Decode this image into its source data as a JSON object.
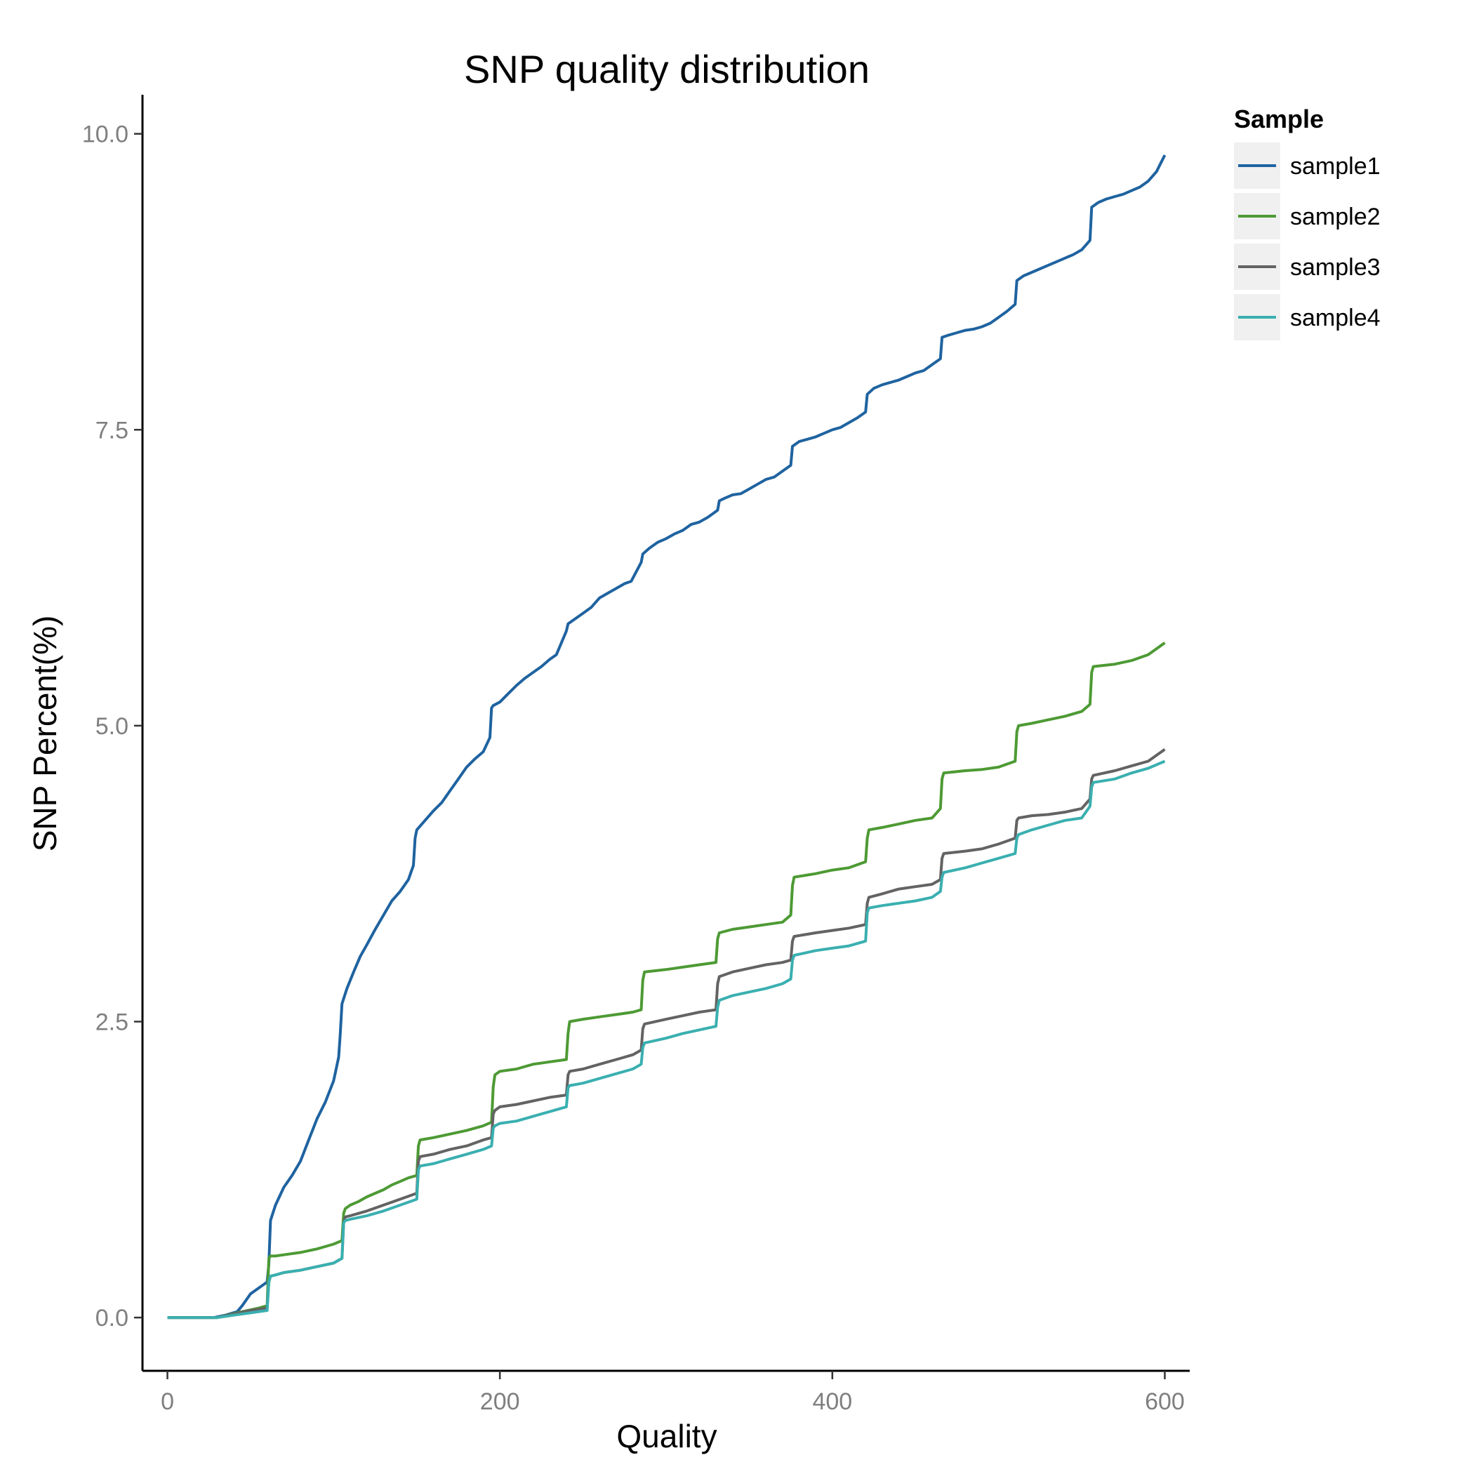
{
  "chart_data": {
    "type": "line",
    "title": "SNP quality distribution",
    "xlabel": "Quality",
    "ylabel": "SNP Percent(%)",
    "xlim": [
      -15,
      615
    ],
    "ylim": [
      -0.45,
      10.33
    ],
    "xticks": [
      0,
      200,
      400,
      600
    ],
    "xtick_labels": [
      "0",
      "200",
      "400",
      "600"
    ],
    "yticks": [
      0,
      2.5,
      5,
      7.5,
      10
    ],
    "ytick_labels": [
      "0.0",
      "2.5",
      "5.0",
      "7.5",
      "10.0"
    ],
    "grid": false,
    "legend": {
      "title": "Sample",
      "position": "right"
    },
    "series": [
      {
        "name": "sample1",
        "color": "#1f63a0",
        "x": [
          0,
          28,
          35,
          42,
          45,
          50,
          55,
          60,
          61,
          62,
          65,
          70,
          75,
          80,
          85,
          90,
          95,
          100,
          103,
          104,
          105,
          108,
          112,
          116,
          120,
          125,
          130,
          135,
          140,
          145,
          148,
          149,
          150,
          155,
          160,
          165,
          170,
          175,
          180,
          185,
          190,
          194,
          195,
          196,
          200,
          205,
          210,
          215,
          220,
          225,
          230,
          234,
          240,
          241,
          245,
          250,
          255,
          260,
          265,
          270,
          275,
          279,
          285,
          286,
          290,
          295,
          300,
          305,
          310,
          315,
          320,
          325,
          331,
          332,
          335,
          340,
          345,
          350,
          355,
          360,
          365,
          370,
          375,
          376,
          380,
          385,
          390,
          395,
          400,
          405,
          410,
          415,
          420,
          421,
          425,
          430,
          435,
          440,
          445,
          450,
          455,
          465,
          466,
          470,
          475,
          480,
          485,
          490,
          495,
          500,
          505,
          510,
          511,
          515,
          520,
          525,
          530,
          535,
          540,
          545,
          550,
          555,
          556,
          560,
          565,
          570,
          575,
          580,
          585,
          590,
          595,
          600
        ],
        "y": [
          0,
          0,
          0.02,
          0.05,
          0.1,
          0.2,
          0.25,
          0.3,
          0.45,
          0.82,
          0.95,
          1.1,
          1.2,
          1.32,
          1.5,
          1.68,
          1.82,
          2.0,
          2.2,
          2.4,
          2.65,
          2.78,
          2.92,
          3.05,
          3.15,
          3.28,
          3.4,
          3.52,
          3.6,
          3.7,
          3.82,
          4.05,
          4.12,
          4.2,
          4.28,
          4.35,
          4.45,
          4.55,
          4.65,
          4.72,
          4.78,
          4.9,
          5.15,
          5.17,
          5.2,
          5.27,
          5.34,
          5.4,
          5.45,
          5.5,
          5.56,
          5.6,
          5.8,
          5.86,
          5.9,
          5.95,
          6.0,
          6.08,
          6.12,
          6.16,
          6.2,
          6.22,
          6.38,
          6.45,
          6.5,
          6.55,
          6.58,
          6.62,
          6.65,
          6.7,
          6.72,
          6.76,
          6.82,
          6.9,
          6.92,
          6.95,
          6.96,
          7.0,
          7.04,
          7.08,
          7.1,
          7.15,
          7.2,
          7.36,
          7.4,
          7.42,
          7.44,
          7.47,
          7.5,
          7.52,
          7.56,
          7.6,
          7.65,
          7.8,
          7.85,
          7.88,
          7.9,
          7.92,
          7.95,
          7.98,
          8.0,
          8.1,
          8.28,
          8.3,
          8.32,
          8.34,
          8.35,
          8.37,
          8.4,
          8.45,
          8.5,
          8.56,
          8.76,
          8.8,
          8.83,
          8.86,
          8.89,
          8.92,
          8.95,
          8.98,
          9.02,
          9.1,
          9.38,
          9.42,
          9.45,
          9.47,
          9.49,
          9.52,
          9.55,
          9.6,
          9.68,
          9.82
        ]
      },
      {
        "name": "sample2",
        "color": "#4d9a34",
        "x": [
          0,
          30,
          45,
          55,
          60,
          61,
          62,
          65,
          70,
          80,
          90,
          100,
          105,
          106,
          107,
          110,
          115,
          120,
          125,
          130,
          135,
          140,
          145,
          150,
          151,
          152,
          160,
          170,
          180,
          190,
          195,
          196,
          197,
          200,
          210,
          220,
          230,
          240,
          241,
          242,
          250,
          260,
          270,
          280,
          285,
          286,
          287,
          300,
          310,
          320,
          330,
          331,
          332,
          340,
          350,
          360,
          370,
          375,
          376,
          377,
          390,
          400,
          410,
          420,
          421,
          422,
          430,
          440,
          450,
          460,
          465,
          466,
          467,
          480,
          490,
          500,
          510,
          511,
          512,
          520,
          530,
          540,
          550,
          555,
          556,
          557,
          570,
          580,
          590,
          600
        ],
        "y": [
          0,
          0,
          0.05,
          0.08,
          0.1,
          0.5,
          0.52,
          0.52,
          0.53,
          0.55,
          0.58,
          0.62,
          0.65,
          0.88,
          0.92,
          0.95,
          0.98,
          1.02,
          1.05,
          1.08,
          1.12,
          1.15,
          1.18,
          1.2,
          1.45,
          1.5,
          1.52,
          1.55,
          1.58,
          1.62,
          1.65,
          1.95,
          2.05,
          2.08,
          2.1,
          2.14,
          2.16,
          2.18,
          2.4,
          2.5,
          2.52,
          2.54,
          2.56,
          2.58,
          2.6,
          2.85,
          2.92,
          2.94,
          2.96,
          2.98,
          3.0,
          3.2,
          3.25,
          3.28,
          3.3,
          3.32,
          3.34,
          3.4,
          3.65,
          3.72,
          3.75,
          3.78,
          3.8,
          3.85,
          4.05,
          4.12,
          4.14,
          4.17,
          4.2,
          4.22,
          4.3,
          4.55,
          4.6,
          4.62,
          4.63,
          4.65,
          4.7,
          4.95,
          5.0,
          5.02,
          5.05,
          5.08,
          5.12,
          5.18,
          5.45,
          5.5,
          5.52,
          5.55,
          5.6,
          5.7
        ]
      },
      {
        "name": "sample3",
        "color": "#636363",
        "x": [
          0,
          30,
          40,
          50,
          60,
          61,
          62,
          65,
          70,
          80,
          90,
          100,
          105,
          106,
          107,
          110,
          120,
          130,
          140,
          150,
          151,
          152,
          160,
          170,
          180,
          190,
          195,
          196,
          197,
          200,
          210,
          220,
          230,
          240,
          241,
          242,
          250,
          260,
          270,
          280,
          285,
          286,
          287,
          300,
          310,
          320,
          330,
          331,
          332,
          340,
          350,
          360,
          370,
          375,
          376,
          377,
          390,
          400,
          410,
          420,
          421,
          422,
          430,
          440,
          450,
          460,
          465,
          466,
          467,
          480,
          490,
          500,
          510,
          511,
          512,
          520,
          530,
          540,
          550,
          555,
          556,
          557,
          570,
          580,
          590,
          600
        ],
        "y": [
          0,
          0,
          0.03,
          0.06,
          0.08,
          0.3,
          0.35,
          0.36,
          0.38,
          0.4,
          0.43,
          0.46,
          0.5,
          0.8,
          0.85,
          0.86,
          0.9,
          0.95,
          1.0,
          1.05,
          1.32,
          1.36,
          1.38,
          1.42,
          1.45,
          1.5,
          1.52,
          1.72,
          1.75,
          1.78,
          1.8,
          1.83,
          1.86,
          1.88,
          2.05,
          2.08,
          2.1,
          2.14,
          2.18,
          2.22,
          2.26,
          2.44,
          2.48,
          2.52,
          2.55,
          2.58,
          2.6,
          2.82,
          2.88,
          2.92,
          2.95,
          2.98,
          3.0,
          3.02,
          3.18,
          3.22,
          3.25,
          3.27,
          3.29,
          3.32,
          3.5,
          3.55,
          3.58,
          3.62,
          3.64,
          3.66,
          3.7,
          3.88,
          3.92,
          3.94,
          3.96,
          4.0,
          4.05,
          4.2,
          4.22,
          4.24,
          4.25,
          4.27,
          4.3,
          4.38,
          4.55,
          4.58,
          4.62,
          4.66,
          4.7,
          4.8
        ]
      },
      {
        "name": "sample4",
        "color": "#3aafb0",
        "x": [
          0,
          30,
          40,
          50,
          60,
          61,
          62,
          65,
          70,
          80,
          90,
          100,
          105,
          106,
          107,
          110,
          120,
          130,
          140,
          150,
          151,
          152,
          160,
          170,
          180,
          190,
          195,
          196,
          197,
          200,
          210,
          220,
          230,
          240,
          241,
          242,
          250,
          260,
          270,
          280,
          285,
          286,
          287,
          300,
          310,
          320,
          330,
          331,
          332,
          340,
          350,
          360,
          370,
          375,
          376,
          377,
          390,
          400,
          410,
          420,
          421,
          422,
          430,
          440,
          450,
          460,
          465,
          466,
          467,
          480,
          490,
          500,
          510,
          511,
          512,
          520,
          530,
          540,
          550,
          555,
          556,
          557,
          570,
          580,
          590,
          600
        ],
        "y": [
          0,
          0,
          0.02,
          0.04,
          0.06,
          0.3,
          0.35,
          0.36,
          0.38,
          0.4,
          0.43,
          0.46,
          0.5,
          0.8,
          0.82,
          0.83,
          0.86,
          0.9,
          0.95,
          1.0,
          1.25,
          1.28,
          1.3,
          1.34,
          1.38,
          1.42,
          1.45,
          1.6,
          1.62,
          1.64,
          1.66,
          1.7,
          1.74,
          1.78,
          1.94,
          1.96,
          1.98,
          2.02,
          2.06,
          2.1,
          2.14,
          2.28,
          2.32,
          2.36,
          2.4,
          2.43,
          2.46,
          2.62,
          2.68,
          2.72,
          2.75,
          2.78,
          2.82,
          2.86,
          3.02,
          3.06,
          3.1,
          3.12,
          3.14,
          3.18,
          3.42,
          3.46,
          3.48,
          3.5,
          3.52,
          3.55,
          3.6,
          3.72,
          3.76,
          3.8,
          3.84,
          3.88,
          3.92,
          4.05,
          4.08,
          4.12,
          4.16,
          4.2,
          4.22,
          4.32,
          4.48,
          4.52,
          4.55,
          4.6,
          4.64,
          4.7
        ]
      }
    ]
  }
}
